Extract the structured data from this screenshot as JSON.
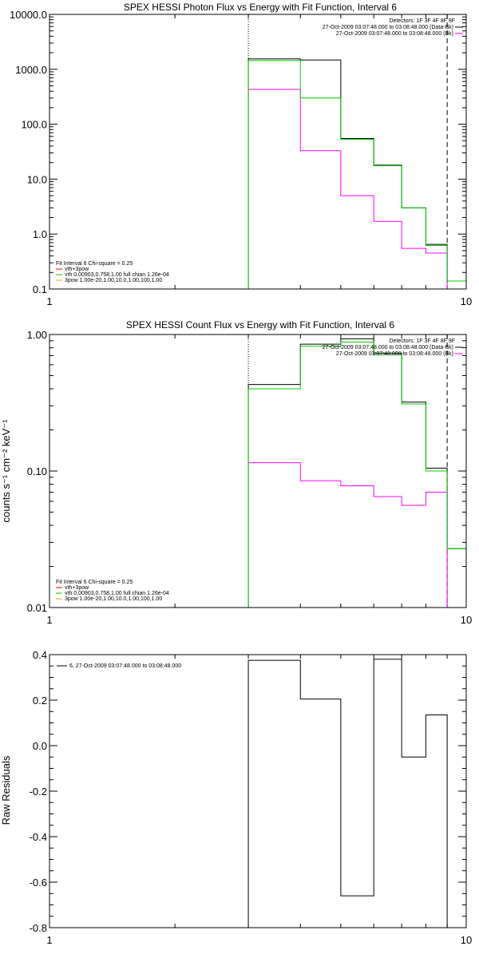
{
  "chart_data": [
    {
      "type": "line",
      "title": "SPEX HESSI Photon Flux vs Energy with Fit Function, Interval 6",
      "ylabel": "",
      "xscale": "log",
      "yscale": "log",
      "xlim": [
        1,
        10
      ],
      "ylim": [
        0.1,
        10000
      ],
      "xticks": [
        1,
        10
      ],
      "xtick_labels": [
        "1",
        "10"
      ],
      "yticks": [
        0.1,
        1,
        10,
        100,
        1000,
        10000
      ],
      "ytick_labels": [
        "0.1",
        "1.0",
        "10.0",
        "100.0",
        "1000.0",
        "10000.0"
      ],
      "vlines": [
        {
          "x": 3.0,
          "style": "dotted"
        },
        {
          "x": 9.0,
          "style": "dashed"
        }
      ],
      "bin_edges": [
        3.0,
        4.0,
        5.0,
        6.0,
        7.0,
        8.0,
        9.0,
        10.0
      ],
      "series": [
        {
          "color": "#000000",
          "values": [
            1550,
            1480,
            55,
            18,
            3.0,
            0.65,
            0.14
          ]
        },
        {
          "color": "#ff00ff",
          "values": [
            430,
            33,
            5.0,
            1.7,
            0.55,
            0.45,
            0.1
          ]
        },
        {
          "color": "#00cc00",
          "values": [
            1450,
            300,
            53,
            17.5,
            3.0,
            0.62,
            0.14
          ]
        }
      ],
      "legend_top": {
        "position": "top-right",
        "header": "Detectors: 1F 3F 4F 8F 9F",
        "entries": [
          {
            "text": "27-Oct-2009 03:07:48.000 to 03:08:48.000 (Data-Bk)",
            "color": "#000000"
          },
          {
            "text": "27-Oct-2009 03:07:48.000 to 03:08:48.000 (Bk)",
            "color": "#ff00ff"
          }
        ]
      },
      "legend_bottom": {
        "position": "bottom-left",
        "header": "Fit Interval 6   Chi-square = 0.25",
        "entries": [
          {
            "text": "vth+3pow",
            "color": "#ff0000"
          },
          {
            "text": "vth 0.00903,0.758,1.00  full chian 1.26e-04",
            "color": "#00cc00"
          },
          {
            "text": "3pow 1.00e-20,1.00,10.0,1.00,100,1.00",
            "color": "#ffa500"
          }
        ]
      }
    },
    {
      "type": "line",
      "title": "SPEX HESSI Count Flux vs Energy with Fit Function, Interval 6",
      "ylabel": "counts s⁻¹ cm⁻² keV⁻¹",
      "xscale": "log",
      "yscale": "log",
      "xlim": [
        1,
        10
      ],
      "ylim": [
        0.01,
        1.0
      ],
      "xticks": [
        1,
        10
      ],
      "xtick_labels": [
        "1",
        "10"
      ],
      "yticks": [
        0.01,
        0.1,
        1.0
      ],
      "ytick_labels": [
        "0.01",
        "0.10",
        "1.00"
      ],
      "vlines": [
        {
          "x": 3.0,
          "style": "dotted"
        },
        {
          "x": 9.0,
          "style": "dashed"
        }
      ],
      "bin_edges": [
        3.0,
        4.0,
        5.0,
        6.0,
        7.0,
        8.0,
        9.0,
        10.0
      ],
      "series": [
        {
          "color": "#000000",
          "values": [
            0.43,
            0.85,
            0.93,
            0.73,
            0.32,
            0.105,
            0.027
          ]
        },
        {
          "color": "#ff00ff",
          "values": [
            0.115,
            0.085,
            0.078,
            0.065,
            0.056,
            0.07,
            0.005
          ]
        },
        {
          "color": "#00cc00",
          "values": [
            0.4,
            0.82,
            0.88,
            0.71,
            0.31,
            0.1,
            0.027
          ]
        }
      ],
      "legend_top": {
        "position": "top-right",
        "header": "Detectors: 1F 3F 4F 8F 9F",
        "entries": [
          {
            "text": "27-Oct-2009 03:07:48.000 to 03:08:48.000 (Data-Bk)",
            "color": "#000000"
          },
          {
            "text": "27-Oct-2009 03:07:48.000 to 03:08:48.000 (Bk)",
            "color": "#ff00ff"
          }
        ]
      },
      "legend_bottom": {
        "position": "bottom-left",
        "header": "Fit Interval 6   Chi-square = 0.25",
        "entries": [
          {
            "text": "vth+3pow",
            "color": "#ff0000"
          },
          {
            "text": "vth 0.00903,0.758,1.00  full chian 1.26e-04",
            "color": "#00cc00"
          },
          {
            "text": "3pow 1.00e-20,1.00,10.0,1.00,100,1.00",
            "color": "#ffa500"
          }
        ]
      }
    },
    {
      "type": "line",
      "title": "",
      "ylabel": "Raw Residuals",
      "xscale": "log",
      "yscale": "linear",
      "xlim": [
        1,
        10
      ],
      "ylim": [
        -0.8,
        0.4
      ],
      "xticks": [
        1,
        10
      ],
      "xtick_labels": [
        "1",
        "10"
      ],
      "yticks": [
        -0.8,
        -0.6,
        -0.4,
        -0.2,
        0.0,
        0.2,
        0.4
      ],
      "ytick_labels": [
        "-0.8",
        "-0.6",
        "-0.4",
        "-0.2",
        "0.0",
        "0.2",
        "0.4"
      ],
      "vlines": [],
      "bin_edges": [
        3.0,
        4.0,
        5.0,
        6.0,
        7.0,
        8.0,
        9.0
      ],
      "series": [
        {
          "color": "#000000",
          "values": [
            0.375,
            0.205,
            -0.66,
            0.38,
            -0.05,
            0.135
          ]
        }
      ],
      "legend_top": {
        "position": "top-left",
        "header": "",
        "entries": [
          {
            "text": "6, 27-Oct-2009 03:07:48.000 to 03:08:48.000",
            "color": "#000000"
          }
        ]
      }
    }
  ]
}
